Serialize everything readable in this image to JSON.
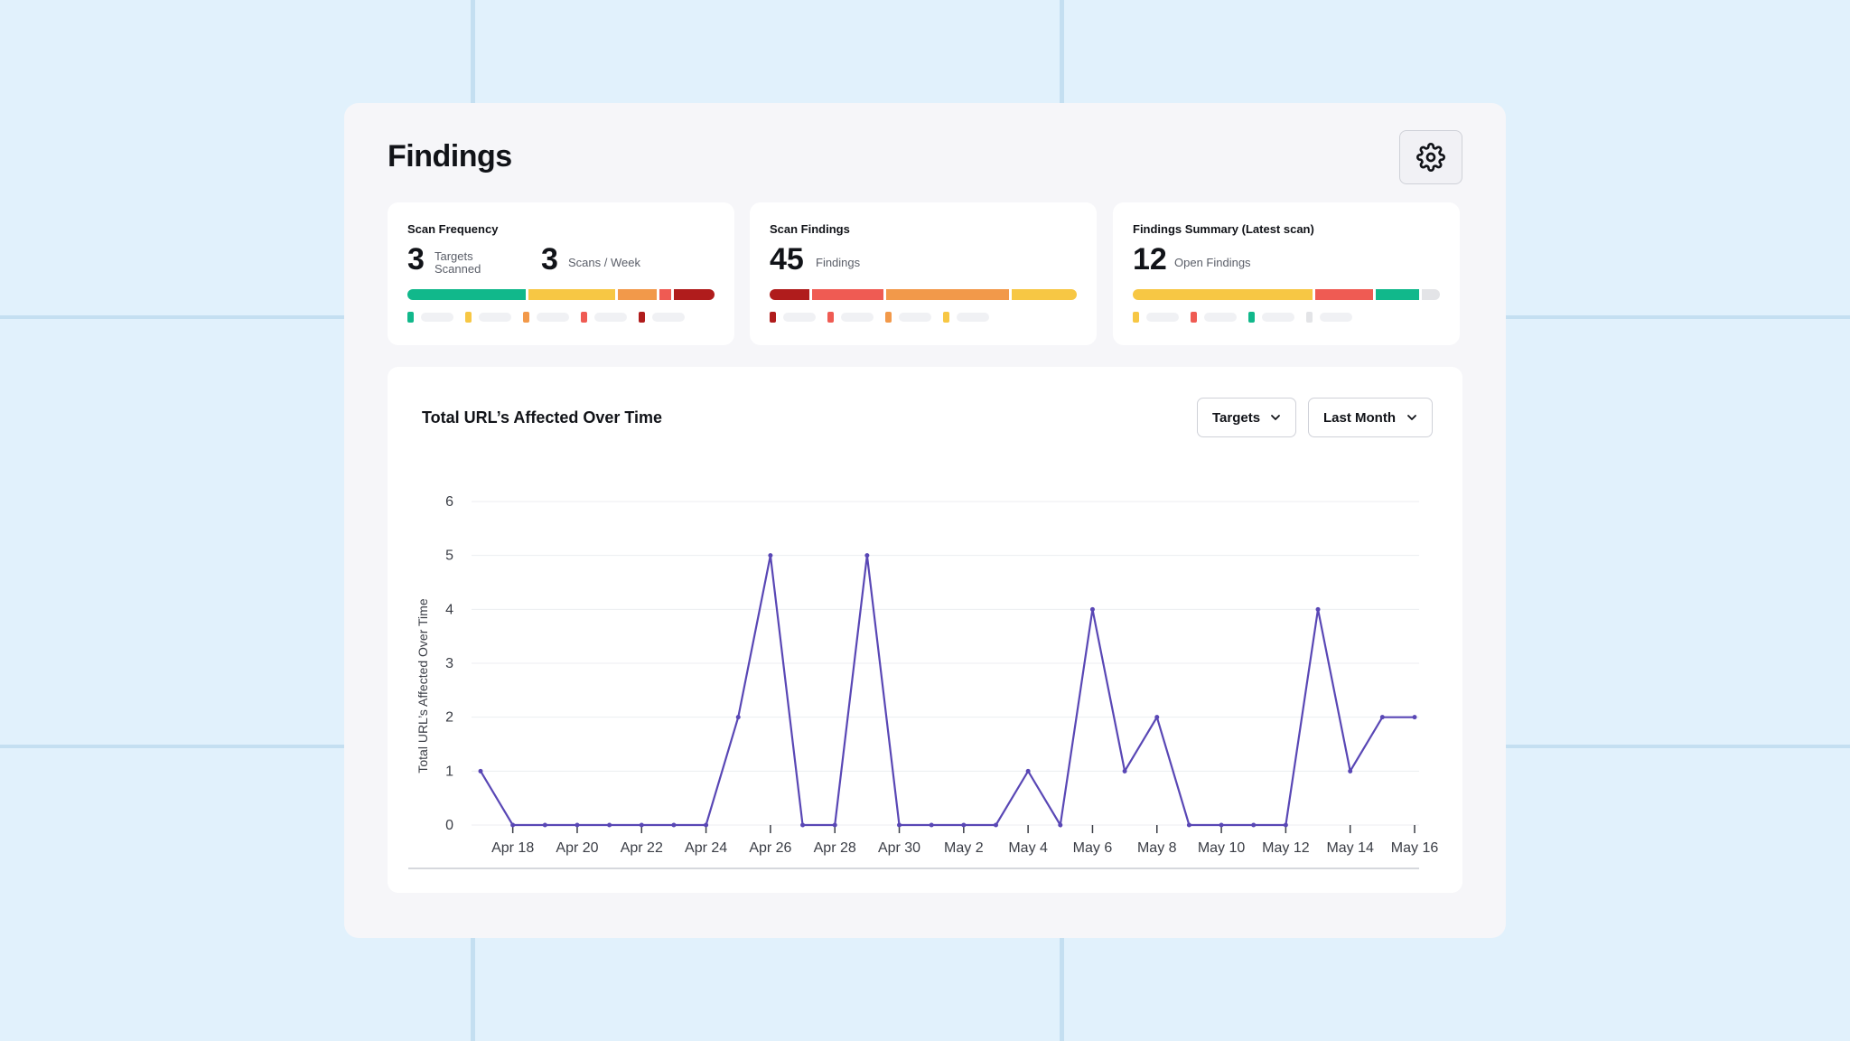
{
  "page": {
    "title": "Findings"
  },
  "colors": {
    "green": "#11b88b",
    "yellow": "#f7c744",
    "orange": "#f2994a",
    "red": "#ef5b53",
    "darkred": "#b01c1c",
    "gray": "#e3e4e7",
    "line": "#5947b5"
  },
  "cards": {
    "scan_frequency": {
      "title": "Scan Frequency",
      "targets_value": "3",
      "targets_label_1": "Targets",
      "targets_label_2": "Scanned",
      "scans_value": "3",
      "scans_label": "Scans / Week",
      "segments": [
        {
          "color": "green",
          "value": 0.38
        },
        {
          "color": "yellow",
          "value": 0.28
        },
        {
          "color": "orange",
          "value": 0.125
        },
        {
          "color": "red",
          "value": 0.04
        },
        {
          "color": "darkred",
          "value": 0.13
        }
      ],
      "legend": [
        "green",
        "yellow",
        "orange",
        "red",
        "darkred"
      ]
    },
    "scan_findings": {
      "title": "Scan Findings",
      "value": "45",
      "label": "Findings",
      "segments": [
        {
          "color": "darkred",
          "value": 0.13
        },
        {
          "color": "red",
          "value": 0.23
        },
        {
          "color": "orange",
          "value": 0.4
        },
        {
          "color": "yellow",
          "value": 0.21
        }
      ],
      "legend": [
        "darkred",
        "red",
        "orange",
        "yellow"
      ]
    },
    "findings_summary": {
      "title": "Findings Summary (Latest scan)",
      "value": "12",
      "label": "Open Findings",
      "segments": [
        {
          "color": "yellow",
          "value": 0.59
        },
        {
          "color": "red",
          "value": 0.19
        },
        {
          "color": "green",
          "value": 0.14
        },
        {
          "color": "gray",
          "value": 0.06
        }
      ],
      "legend": [
        "yellow",
        "red",
        "green",
        "gray"
      ]
    }
  },
  "chart_section": {
    "title": "Total URL’s Affected Over Time",
    "dropdown_targets": "Targets",
    "dropdown_period": "Last Month"
  },
  "chart_data": {
    "type": "line",
    "ylabel": "Total URL’s Affected Over Time",
    "xlabel": "",
    "ylim": [
      0,
      6
    ],
    "yticks": [
      0,
      1,
      2,
      3,
      4,
      5,
      6
    ],
    "x": [
      "Apr 17",
      "Apr 18",
      "Apr 19",
      "Apr 20",
      "Apr 21",
      "Apr 22",
      "Apr 23",
      "Apr 24",
      "Apr 25",
      "Apr 26",
      "Apr 27",
      "Apr 28",
      "Apr 29",
      "Apr 30",
      "May 1",
      "May 2",
      "May 3",
      "May 4",
      "May 5",
      "May 6",
      "May 7",
      "May 8",
      "May 9",
      "May 10",
      "May 11",
      "May 12",
      "May 13",
      "May 14",
      "May 15",
      "May 16"
    ],
    "xtick_labels": [
      "Apr 18",
      "Apr 20",
      "Apr 22",
      "Apr 24",
      "Apr 26",
      "Apr 28",
      "Apr 30",
      "May 2",
      "May 4",
      "May 6",
      "May 8",
      "May 10",
      "May 12",
      "May 14",
      "May 16"
    ],
    "series": [
      {
        "values": [
          1,
          0,
          0,
          0,
          0,
          0,
          0,
          0,
          2,
          5,
          0,
          0,
          5,
          0,
          0,
          0,
          0,
          1,
          0,
          4,
          1,
          2,
          0,
          0,
          0,
          0,
          4,
          1,
          2,
          2
        ]
      }
    ],
    "grid": true,
    "legend": "none"
  }
}
